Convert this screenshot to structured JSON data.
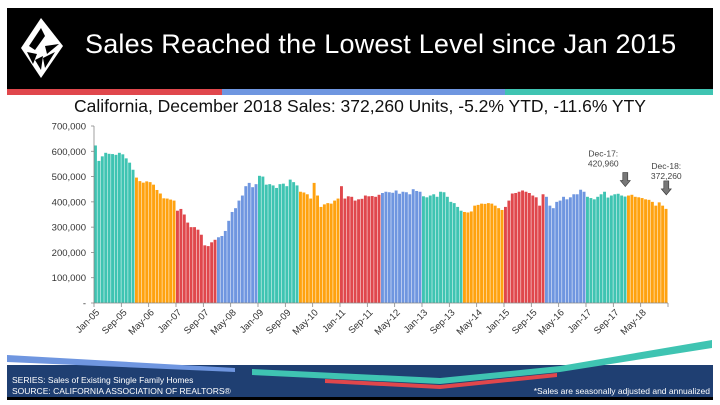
{
  "header": {
    "title": "Sales Reached the Lowest Level since Jan 2015",
    "subtitle": "California, December 2018 Sales: 372,260 Units, -5.2% YTD, -11.6% YTY",
    "stripe_colors": [
      "#e0474c",
      "#6f96e0",
      "#3fc4b2"
    ]
  },
  "chart_data": {
    "type": "bar",
    "title": "",
    "xlabel": "",
    "ylabel": "",
    "ylim": [
      0,
      700000
    ],
    "y_ticks": [
      0,
      100000,
      200000,
      300000,
      400000,
      500000,
      600000,
      700000
    ],
    "y_tick_labels": [
      "-",
      "100,000",
      "200,000",
      "300,000",
      "400,000",
      "500,000",
      "600,000",
      "700,000"
    ],
    "x_tick_labels": [
      "Jan-05",
      "Sep-05",
      "May-06",
      "Jan-07",
      "Sep-07",
      "May-08",
      "Jan-09",
      "Sep-09",
      "May-10",
      "Jan-11",
      "Sep-11",
      "May-12",
      "Jan-13",
      "Sep-13",
      "May-14",
      "Jan-15",
      "Sep-15",
      "May-16",
      "Jan-17",
      "Sep-17",
      "May-18"
    ],
    "start": "Jan-05",
    "end": "Dec-18",
    "year_colors": [
      "#3fc4b2",
      "#ffa20f",
      "#e0474c",
      "#6f96e0"
    ],
    "grid": false,
    "values": [
      623000,
      562000,
      580000,
      594000,
      590000,
      589000,
      586000,
      594000,
      588000,
      572000,
      555000,
      527000,
      496000,
      482000,
      476000,
      481000,
      478000,
      468000,
      447000,
      433000,
      414000,
      413000,
      409000,
      405000,
      365000,
      372000,
      350000,
      318000,
      300000,
      300000,
      290000,
      270000,
      228000,
      225000,
      240000,
      250000,
      260000,
      265000,
      285000,
      325000,
      360000,
      375000,
      405000,
      425000,
      462000,
      475000,
      458000,
      470000,
      503000,
      500000,
      468000,
      470000,
      465000,
      455000,
      470000,
      472000,
      462000,
      488000,
      478000,
      465000,
      440000,
      437000,
      430000,
      413000,
      475000,
      425000,
      380000,
      390000,
      395000,
      393000,
      405000,
      413000,
      462000,
      413000,
      422000,
      420000,
      405000,
      410000,
      412000,
      425000,
      422000,
      423000,
      420000,
      428000,
      435000,
      440000,
      438000,
      436000,
      445000,
      432000,
      440000,
      438000,
      430000,
      450000,
      443000,
      440000,
      422000,
      418000,
      425000,
      430000,
      420000,
      440000,
      438000,
      420000,
      400000,
      395000,
      380000,
      365000,
      360000,
      358000,
      362000,
      385000,
      388000,
      393000,
      392000,
      395000,
      393000,
      385000,
      375000,
      368000,
      380000,
      405000,
      433000,
      435000,
      440000,
      445000,
      440000,
      435000,
      425000,
      418000,
      385000,
      430000,
      420000,
      385000,
      375000,
      400000,
      405000,
      420000,
      410000,
      418000,
      430000,
      430000,
      448000,
      440000,
      420000,
      415000,
      410000,
      420000,
      430000,
      440000,
      417000,
      425000,
      430000,
      432000,
      425000,
      420960,
      425000,
      428000,
      420000,
      418000,
      415000,
      410000,
      408000,
      400000,
      385000,
      398000,
      385000,
      372260
    ],
    "annotations": [
      {
        "label_line1": "Dec-17:",
        "label_line2": "420,960",
        "month": "Dec-17",
        "value": 420960
      },
      {
        "label_line1": "Dec-18:",
        "label_line2": "372,260",
        "month": "Dec-18",
        "value": 372260
      }
    ]
  },
  "footer": {
    "series": "SERIES: Sales of Existing Single Family Homes",
    "source": "SOURCE:  CALIFORNIA ASSOCIATION OF REALTORS®",
    "note": "*Sales are seasonally adjusted and annualized",
    "background_color": "#1f3f72"
  }
}
